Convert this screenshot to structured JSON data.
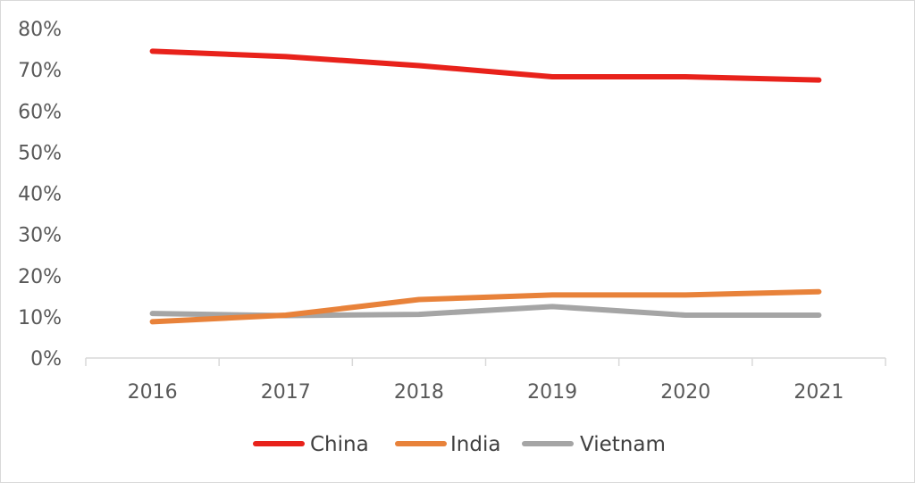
{
  "chart_data": {
    "type": "line",
    "title": "",
    "xlabel": "",
    "ylabel": "",
    "categories": [
      "2016",
      "2017",
      "2018",
      "2019",
      "2020",
      "2021"
    ],
    "y_ticks": [
      "0%",
      "10%",
      "20%",
      "30%",
      "40%",
      "50%",
      "60%",
      "70%",
      "80%"
    ],
    "ylim": [
      0,
      80
    ],
    "grid": false,
    "legend_position": "bottom",
    "series": [
      {
        "name": "China",
        "color": "#e8221b",
        "values": [
          74.5,
          73.2,
          71.0,
          68.3,
          68.3,
          67.5
        ]
      },
      {
        "name": "India",
        "color": "#e8823a",
        "values": [
          8.8,
          10.4,
          14.2,
          15.3,
          15.3,
          16.1
        ]
      },
      {
        "name": "Vietnam",
        "color": "#a5a5a5",
        "values": [
          10.8,
          10.3,
          10.6,
          12.5,
          10.4,
          10.4
        ]
      }
    ]
  }
}
